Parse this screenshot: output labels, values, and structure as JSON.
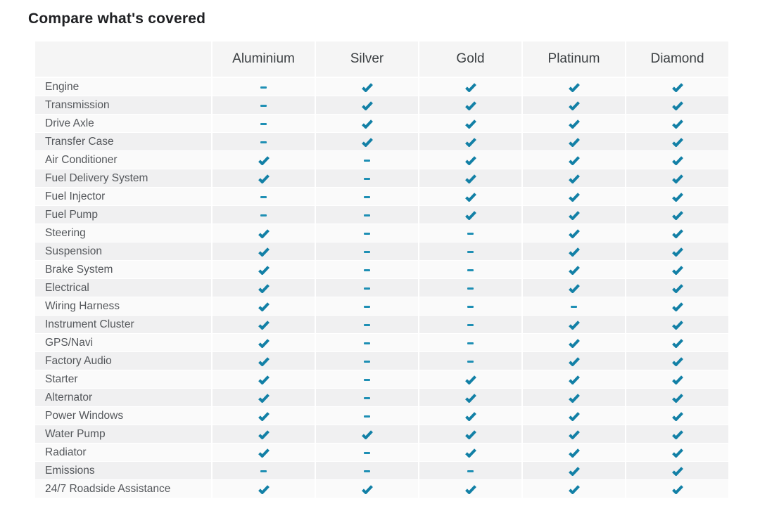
{
  "title": "Compare what's covered",
  "colors": {
    "check": "#1280a6",
    "dash": "#1e8fb4"
  },
  "icons": {
    "check": "check-icon",
    "dash": "dash-icon"
  },
  "table": {
    "headers": [
      "Aluminium",
      "Silver",
      "Gold",
      "Platinum",
      "Diamond"
    ],
    "rows": [
      {
        "label": "Engine",
        "values": [
          "dash",
          "check",
          "check",
          "check",
          "check"
        ]
      },
      {
        "label": "Transmission",
        "values": [
          "dash",
          "check",
          "check",
          "check",
          "check"
        ]
      },
      {
        "label": "Drive Axle",
        "values": [
          "dash",
          "check",
          "check",
          "check",
          "check"
        ]
      },
      {
        "label": "Transfer Case",
        "values": [
          "dash",
          "check",
          "check",
          "check",
          "check"
        ]
      },
      {
        "label": "Air Conditioner",
        "values": [
          "check",
          "dash",
          "check",
          "check",
          "check"
        ]
      },
      {
        "label": "Fuel Delivery System",
        "values": [
          "check",
          "dash",
          "check",
          "check",
          "check"
        ]
      },
      {
        "label": "Fuel Injector",
        "values": [
          "dash",
          "dash",
          "check",
          "check",
          "check"
        ]
      },
      {
        "label": "Fuel Pump",
        "values": [
          "dash",
          "dash",
          "check",
          "check",
          "check"
        ]
      },
      {
        "label": "Steering",
        "values": [
          "check",
          "dash",
          "dash",
          "check",
          "check"
        ]
      },
      {
        "label": "Suspension",
        "values": [
          "check",
          "dash",
          "dash",
          "check",
          "check"
        ]
      },
      {
        "label": "Brake System",
        "values": [
          "check",
          "dash",
          "dash",
          "check",
          "check"
        ]
      },
      {
        "label": "Electrical",
        "values": [
          "check",
          "dash",
          "dash",
          "check",
          "check"
        ]
      },
      {
        "label": "Wiring Harness",
        "values": [
          "check",
          "dash",
          "dash",
          "dash",
          "check"
        ]
      },
      {
        "label": "Instrument Cluster",
        "values": [
          "check",
          "dash",
          "dash",
          "check",
          "check"
        ]
      },
      {
        "label": "GPS/Navi",
        "values": [
          "check",
          "dash",
          "dash",
          "check",
          "check"
        ]
      },
      {
        "label": "Factory Audio",
        "values": [
          "check",
          "dash",
          "dash",
          "check",
          "check"
        ]
      },
      {
        "label": "Starter",
        "values": [
          "check",
          "dash",
          "check",
          "check",
          "check"
        ]
      },
      {
        "label": "Alternator",
        "values": [
          "check",
          "dash",
          "check",
          "check",
          "check"
        ]
      },
      {
        "label": "Power Windows",
        "values": [
          "check",
          "dash",
          "check",
          "check",
          "check"
        ]
      },
      {
        "label": "Water Pump",
        "values": [
          "check",
          "check",
          "check",
          "check",
          "check"
        ]
      },
      {
        "label": "Radiator",
        "values": [
          "check",
          "dash",
          "check",
          "check",
          "check"
        ]
      },
      {
        "label": "Emissions",
        "values": [
          "dash",
          "dash",
          "dash",
          "check",
          "check"
        ]
      },
      {
        "label": "24/7 Roadside Assistance",
        "values": [
          "check",
          "check",
          "check",
          "check",
          "check"
        ]
      }
    ]
  }
}
